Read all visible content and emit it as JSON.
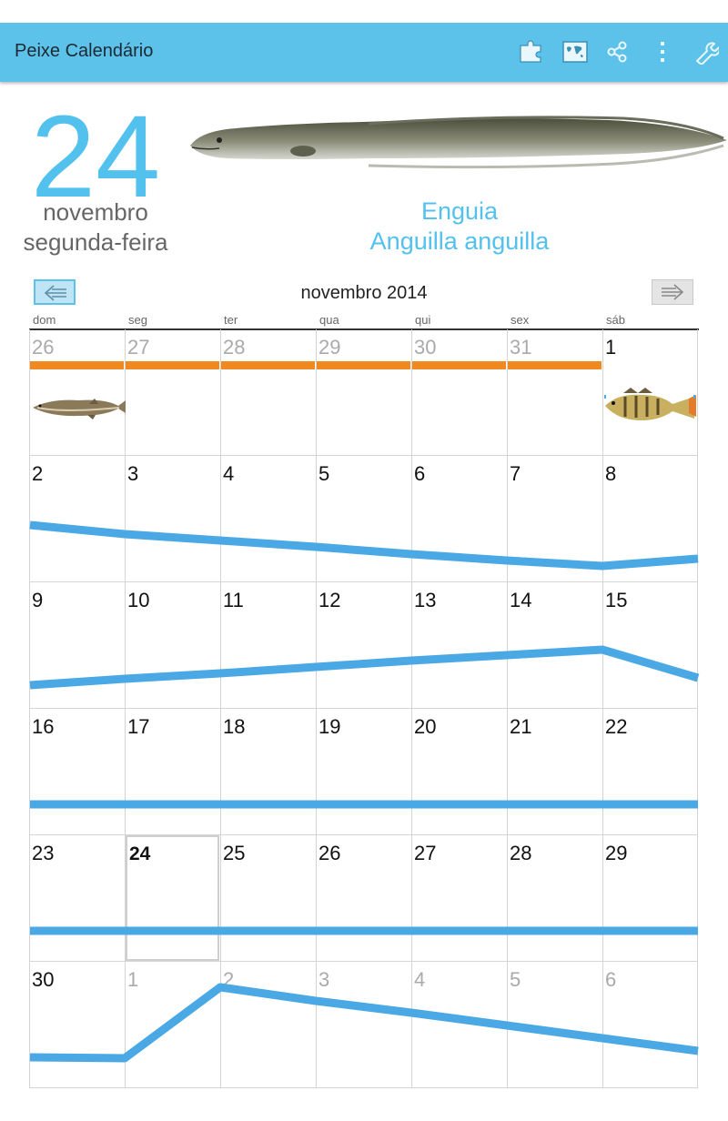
{
  "app": {
    "title": "Peixe Calendário"
  },
  "toolbar": {
    "actions": [
      "puzzle-icon",
      "world-map-icon",
      "share-icon",
      "overflow-menu-icon",
      "wrench-icon"
    ]
  },
  "selected": {
    "day": "24",
    "month": "novembro",
    "weekday": "segunda-feira",
    "fish_common_name": "Enguia",
    "fish_scientific_name": "Anguilla anguilla"
  },
  "calendar": {
    "title": "novembro 2014",
    "prev_icon": "arrow-left-icon",
    "next_icon": "arrow-right-icon",
    "weekdays": [
      "dom",
      "seg",
      "ter",
      "qua",
      "qui",
      "sex",
      "sáb"
    ],
    "weeks": [
      [
        "26",
        "27",
        "28",
        "29",
        "30",
        "31",
        "1"
      ],
      [
        "2",
        "3",
        "4",
        "5",
        "6",
        "7",
        "8"
      ],
      [
        "9",
        "10",
        "11",
        "12",
        "13",
        "14",
        "15"
      ],
      [
        "16",
        "17",
        "18",
        "19",
        "20",
        "21",
        "22"
      ],
      [
        "23",
        "24",
        "25",
        "26",
        "27",
        "28",
        "29"
      ],
      [
        "30",
        "1",
        "2",
        "3",
        "4",
        "5",
        "6"
      ]
    ],
    "out_of_month": [
      [
        0,
        0
      ],
      [
        0,
        1
      ],
      [
        0,
        2
      ],
      [
        0,
        3
      ],
      [
        0,
        4
      ],
      [
        0,
        5
      ],
      [
        5,
        1
      ],
      [
        5,
        2
      ],
      [
        5,
        3
      ],
      [
        5,
        4
      ],
      [
        5,
        5
      ],
      [
        5,
        6
      ]
    ],
    "today": [
      4,
      1
    ],
    "fish_icons": [
      {
        "cell": [
          0,
          0
        ],
        "icon": "pike-fish-icon"
      },
      {
        "cell": [
          0,
          6
        ],
        "icon": "perch-fish-icon"
      }
    ],
    "colors": {
      "accent": "#52c1ee",
      "line": "#4aa9e4",
      "marker": "#f0891f",
      "grid": "#d4d4d4"
    }
  }
}
